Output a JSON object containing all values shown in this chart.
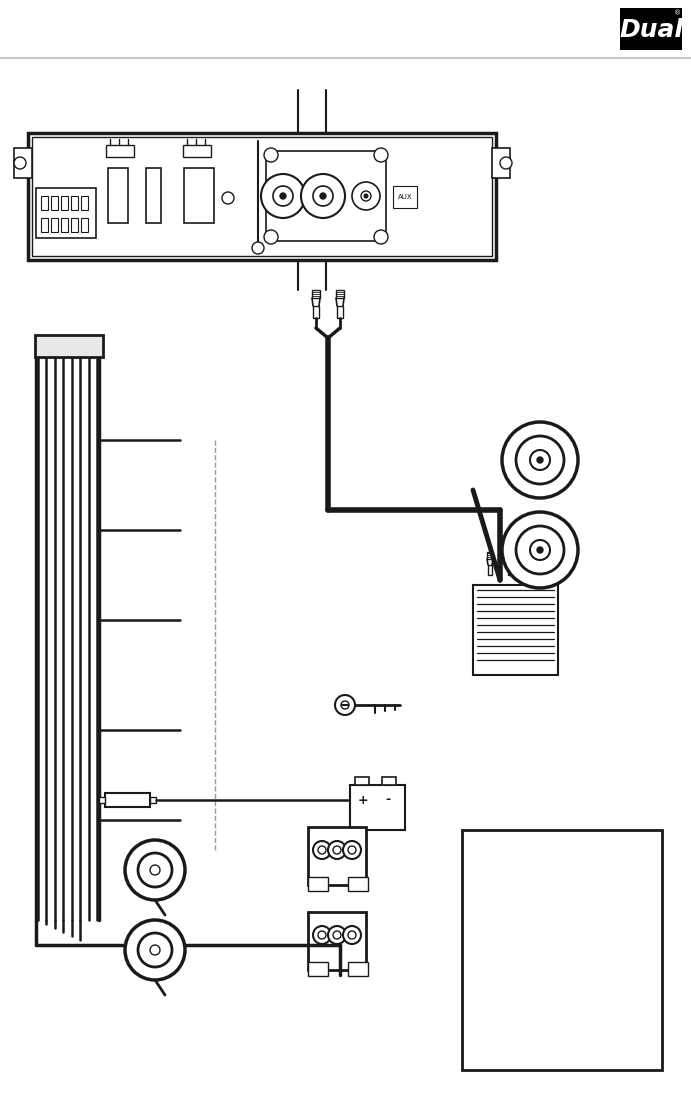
{
  "bg_color": "#ffffff",
  "lc": "#1a1a1a",
  "logo_bg": "#000000",
  "logo_text": "#ffffff",
  "header_line_color": "#bbbbbb",
  "fig_width": 6.91,
  "fig_height": 11.01,
  "dpi": 100
}
